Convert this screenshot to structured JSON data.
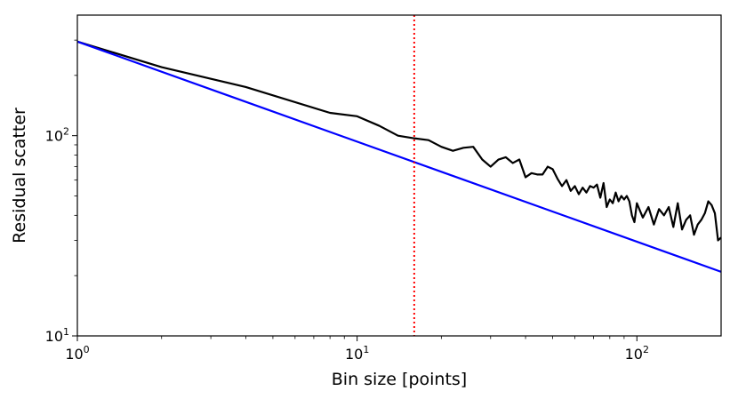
{
  "chart_data": {
    "type": "line",
    "title": "",
    "xlabel": "Bin size [points]",
    "ylabel": "Residual scatter",
    "x_scale": "log",
    "y_scale": "log",
    "xlim": [
      1,
      200
    ],
    "ylim": [
      10,
      400
    ],
    "grid": false,
    "x_ticks": [
      {
        "value": 1,
        "base": "10",
        "exp": "0"
      },
      {
        "value": 10,
        "base": "10",
        "exp": "1"
      },
      {
        "value": 100,
        "base": "10",
        "exp": "2"
      }
    ],
    "y_ticks": [
      {
        "value": 10,
        "base": "10",
        "exp": "1"
      },
      {
        "value": 100,
        "base": "10",
        "exp": "2"
      }
    ],
    "vline": {
      "x": 16,
      "color": "#ff0000",
      "style": "dotted"
    },
    "series": [
      {
        "color": "#000000",
        "style": "solid",
        "x": [
          1,
          2,
          4,
          8,
          10,
          12,
          14,
          16,
          18,
          20,
          22,
          24,
          26,
          28,
          30,
          32,
          34,
          36,
          38,
          40,
          42,
          44,
          46,
          48,
          50,
          52,
          54,
          56,
          58,
          60,
          62,
          64,
          66,
          68,
          70,
          72,
          74,
          76,
          78,
          80,
          82,
          84,
          86,
          88,
          90,
          92,
          94,
          96,
          98,
          100,
          105,
          110,
          115,
          120,
          125,
          130,
          135,
          140,
          145,
          150,
          155,
          160,
          165,
          170,
          175,
          180,
          185,
          190,
          195,
          200
        ],
        "y": [
          295,
          220,
          175,
          130,
          125,
          112,
          100,
          97,
          95,
          88,
          84,
          87,
          88,
          76,
          70,
          76,
          78,
          73,
          76,
          62,
          65,
          64,
          64,
          70,
          68,
          61,
          56,
          60,
          53,
          56,
          51,
          55,
          52,
          56,
          55,
          57,
          49,
          58,
          44,
          48,
          46,
          52,
          47,
          50,
          48,
          50,
          47,
          40,
          37,
          46,
          39,
          44,
          36,
          43,
          40,
          44,
          35,
          46,
          34,
          38,
          40,
          32,
          36,
          38,
          41,
          47,
          45,
          41,
          30,
          31
        ]
      },
      {
        "color": "#0000ff",
        "style": "solid",
        "x": [
          1,
          200
        ],
        "y": [
          295,
          20.9
        ]
      }
    ]
  }
}
